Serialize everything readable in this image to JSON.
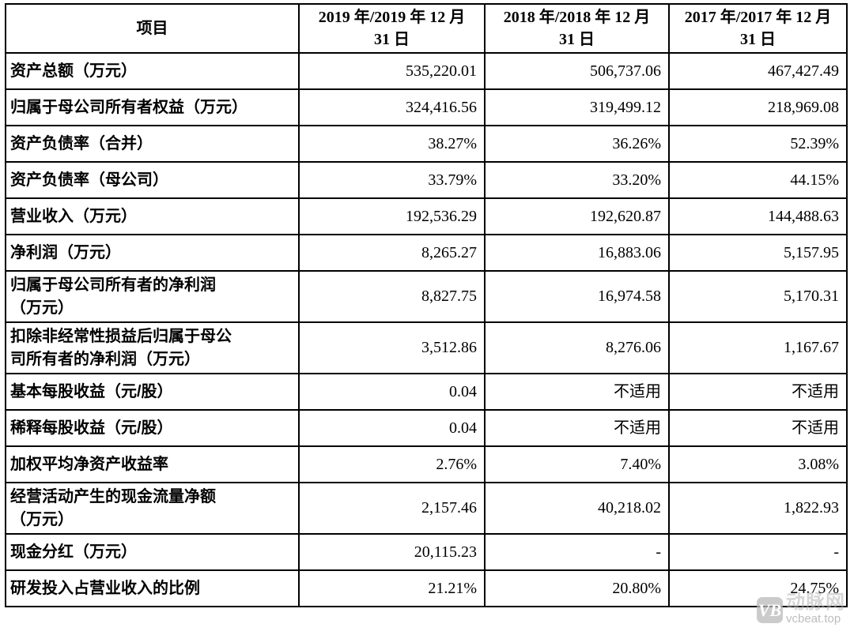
{
  "table": {
    "headers": {
      "item": "项目",
      "y2019": "2019 年/2019 年 12 月\n31 日",
      "y2018": "2018 年/2018 年 12 月\n31 日",
      "y2017": "2017 年/2017 年 12 月\n31 日"
    },
    "rows": [
      {
        "label": "资产总额（万元）",
        "values": [
          "535,220.01",
          "506,737.06",
          "467,427.49"
        ]
      },
      {
        "label": "归属于母公司所有者权益（万元）",
        "values": [
          "324,416.56",
          "319,499.12",
          "218,969.08"
        ]
      },
      {
        "label": "资产负债率（合并）",
        "values": [
          "38.27%",
          "36.26%",
          "52.39%"
        ]
      },
      {
        "label": "资产负债率（母公司）",
        "values": [
          "33.79%",
          "33.20%",
          "44.15%"
        ]
      },
      {
        "label": "营业收入（万元）",
        "values": [
          "192,536.29",
          "192,620.87",
          "144,488.63"
        ]
      },
      {
        "label": "净利润（万元）",
        "values": [
          "8,265.27",
          "16,883.06",
          "5,157.95"
        ]
      },
      {
        "label": "归属于母公司所有者的净利润\n（万元）",
        "values": [
          "8,827.75",
          "16,974.58",
          "5,170.31"
        ]
      },
      {
        "label": "扣除非经常性损益后归属于母公\n司所有者的净利润（万元）",
        "values": [
          "3,512.86",
          "8,276.06",
          "1,167.67"
        ]
      },
      {
        "label": "基本每股收益（元/股）",
        "values": [
          "0.04",
          "不适用",
          "不适用"
        ]
      },
      {
        "label": "稀释每股收益（元/股）",
        "values": [
          "0.04",
          "不适用",
          "不适用"
        ]
      },
      {
        "label": "加权平均净资产收益率",
        "values": [
          "2.76%",
          "7.40%",
          "3.08%"
        ]
      },
      {
        "label": "经营活动产生的现金流量净额\n（万元）",
        "values": [
          "2,157.46",
          "40,218.02",
          "1,822.93"
        ]
      },
      {
        "label": "现金分红（万元）",
        "values": [
          "20,115.23",
          "-",
          "-"
        ]
      },
      {
        "label": "研发投入占营业收入的比例",
        "values": [
          "21.21%",
          "20.80%",
          "24.75%"
        ]
      }
    ]
  },
  "watermark": {
    "logo": "VB",
    "brand": "动脉网",
    "site": "vcbeat.top"
  },
  "colors": {
    "border": "#000000",
    "text": "#000000",
    "watermark_gray": "#bababa",
    "background": "#ffffff"
  }
}
